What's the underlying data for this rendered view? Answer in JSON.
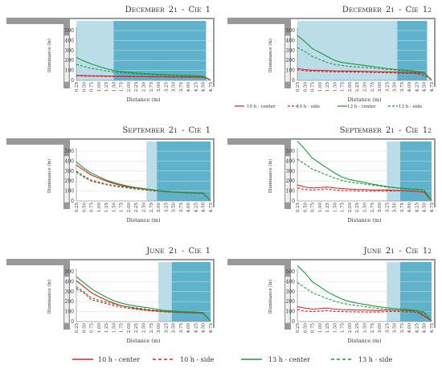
{
  "x_tick_labels": [
    "0.25",
    "0.50",
    "0.75",
    "1.00",
    "1.25",
    "1.50",
    "1.75",
    "2.00",
    "2.25",
    "2.50",
    "2.75",
    "3.00",
    "3.25",
    "3.50",
    "3.75",
    "4.00",
    "4.25",
    "4.50",
    "4.75"
  ],
  "y_ticks": [
    0,
    100,
    200,
    300,
    400,
    500
  ],
  "ylim": [
    0,
    500
  ],
  "ylabel": "Illuminance (lx)",
  "xlabel": "Distance (m)",
  "colors": {
    "red": "#e02020",
    "green": "#1f9a3a",
    "shade_light": "#b9dde9",
    "shade_dark": "#5fb2cb",
    "wall": "#999999"
  },
  "legend_small": [
    {
      "label": "10 h - center",
      "color": "#e02020",
      "dash": false
    },
    {
      "label": "10 h - side",
      "color": "#e02020",
      "dash": true
    },
    {
      "label": "13 h - center",
      "color": "#1f9a3a",
      "dash": false
    },
    {
      "label": "13 h - side",
      "color": "#1f9a3a",
      "dash": true
    }
  ],
  "legend_big": [
    {
      "label": "10 h - center",
      "color": "#e02020",
      "dash": false
    },
    {
      "label": "10 h - side",
      "color": "#e02020",
      "dash": true
    },
    {
      "label": "13 h - center",
      "color": "#1f9a3a",
      "dash": false
    },
    {
      "label": "13 h - side",
      "color": "#1f9a3a",
      "dash": true
    }
  ],
  "chart_data": [
    {
      "type": "line",
      "title": "December 21 - CIE 1",
      "shade_light_x": [
        0.25,
        1.5
      ],
      "shade_dark_x": [
        1.5,
        4.6
      ],
      "series": [
        {
          "name": "10 h - center",
          "values": [
            50,
            48,
            46,
            45,
            44,
            43,
            42,
            41,
            40,
            39,
            39,
            38,
            37,
            36,
            35,
            35,
            34,
            33,
            5
          ]
        },
        {
          "name": "10 h - side",
          "values": [
            45,
            43,
            42,
            41,
            40,
            39,
            38,
            37,
            37,
            36,
            35,
            35,
            34,
            33,
            32,
            32,
            31,
            30,
            5
          ]
        },
        {
          "name": "13 h - center",
          "values": [
            230,
            195,
            165,
            140,
            118,
            100,
            88,
            80,
            74,
            69,
            64,
            60,
            57,
            54,
            51,
            49,
            46,
            42,
            5
          ]
        },
        {
          "name": "13 h - side",
          "values": [
            160,
            140,
            120,
            108,
            95,
            85,
            78,
            72,
            66,
            62,
            58,
            55,
            52,
            49,
            47,
            45,
            43,
            40,
            5
          ]
        }
      ]
    },
    {
      "type": "line",
      "title": "December 21 - CIE 12",
      "shade_light_x": [
        0.25,
        3.6
      ],
      "shade_dark_x": [
        3.6,
        4.6
      ],
      "series": [
        {
          "name": "10 h - center",
          "values": [
            120,
            108,
            102,
            100,
            98,
            95,
            94,
            93,
            92,
            90,
            88,
            86,
            85,
            83,
            80,
            78,
            75,
            72,
            5
          ]
        },
        {
          "name": "10 h - side",
          "values": [
            105,
            98,
            92,
            90,
            88,
            86,
            85,
            84,
            83,
            82,
            80,
            78,
            76,
            74,
            72,
            70,
            68,
            50,
            5
          ]
        },
        {
          "name": "13 h - center",
          "values": [
            450,
            390,
            320,
            280,
            240,
            200,
            180,
            170,
            160,
            150,
            140,
            130,
            120,
            112,
            105,
            98,
            92,
            80,
            5
          ]
        },
        {
          "name": "13 h - side",
          "values": [
            330,
            290,
            240,
            210,
            180,
            160,
            150,
            140,
            135,
            130,
            125,
            118,
            110,
            105,
            98,
            92,
            85,
            75,
            5
          ]
        }
      ]
    },
    {
      "type": "line",
      "title": "September 21 - CIE 1",
      "shade_light_x": [
        2.6,
        2.95
      ],
      "shade_dark_x": [
        2.95,
        4.75
      ],
      "series": [
        {
          "name": "10 h - center",
          "values": [
            360,
            310,
            260,
            230,
            200,
            175,
            155,
            140,
            130,
            120,
            110,
            102,
            95,
            90,
            85,
            82,
            80,
            78,
            5
          ]
        },
        {
          "name": "10 h - side",
          "values": [
            290,
            240,
            200,
            180,
            165,
            150,
            140,
            130,
            120,
            112,
            105,
            98,
            92,
            88,
            84,
            80,
            78,
            75,
            5
          ]
        },
        {
          "name": "13 h - center",
          "values": [
            390,
            330,
            280,
            245,
            210,
            185,
            165,
            148,
            135,
            125,
            115,
            105,
            98,
            92,
            88,
            85,
            82,
            80,
            5
          ]
        },
        {
          "name": "13 h - side",
          "values": [
            300,
            250,
            210,
            190,
            170,
            155,
            145,
            135,
            125,
            118,
            110,
            102,
            96,
            90,
            86,
            83,
            80,
            78,
            5
          ]
        }
      ]
    },
    {
      "type": "line",
      "title": "September 21 - CIE 12",
      "shade_light_x": [
        3.25,
        3.7
      ],
      "shade_dark_x": [
        3.7,
        4.75
      ],
      "series": [
        {
          "name": "10 h - center",
          "values": [
            160,
            140,
            130,
            135,
            140,
            130,
            125,
            120,
            115,
            115,
            110,
            110,
            110,
            105,
            105,
            100,
            95,
            90,
            5
          ]
        },
        {
          "name": "10 h - side",
          "values": [
            130,
            115,
            110,
            115,
            120,
            110,
            105,
            105,
            100,
            100,
            98,
            98,
            100,
            100,
            102,
            100,
            95,
            90,
            5
          ]
        },
        {
          "name": "13 h - center",
          "values": [
            600,
            520,
            430,
            380,
            330,
            280,
            240,
            215,
            200,
            185,
            170,
            158,
            145,
            135,
            128,
            122,
            118,
            110,
            5
          ]
        },
        {
          "name": "13 h - side",
          "values": [
            420,
            370,
            320,
            290,
            260,
            230,
            205,
            190,
            180,
            170,
            160,
            150,
            140,
            132,
            125,
            118,
            112,
            105,
            5
          ]
        }
      ]
    },
    {
      "type": "line",
      "title": "June 21 - CIE 1",
      "shade_light_x": [
        3.0,
        3.45
      ],
      "shade_dark_x": [
        3.45,
        4.75
      ],
      "series": [
        {
          "name": "10 h - center",
          "values": [
            410,
            350,
            290,
            250,
            215,
            185,
            160,
            145,
            130,
            120,
            112,
            105,
            100,
            96,
            93,
            90,
            88,
            85,
            5
          ]
        },
        {
          "name": "10 h - side",
          "values": [
            330,
            290,
            220,
            200,
            180,
            160,
            145,
            133,
            124,
            115,
            108,
            102,
            97,
            93,
            90,
            88,
            85,
            83,
            5
          ]
        },
        {
          "name": "13 h - center",
          "values": [
            450,
            390,
            330,
            285,
            245,
            210,
            185,
            168,
            155,
            145,
            135,
            120,
            110,
            105,
            100,
            98,
            95,
            90,
            5
          ]
        },
        {
          "name": "13 h - side",
          "values": [
            350,
            300,
            240,
            215,
            195,
            175,
            160,
            148,
            138,
            128,
            120,
            110,
            102,
            97,
            94,
            92,
            90,
            88,
            5
          ]
        }
      ]
    },
    {
      "type": "line",
      "title": "June 21 - CIE 12",
      "shade_light_x": [
        3.25,
        3.7
      ],
      "shade_dark_x": [
        3.7,
        4.75
      ],
      "series": [
        {
          "name": "10 h - center",
          "values": [
            150,
            135,
            125,
            130,
            135,
            125,
            120,
            118,
            115,
            115,
            112,
            110,
            115,
            115,
            112,
            110,
            105,
            60,
            5
          ]
        },
        {
          "name": "10 h - side",
          "values": [
            120,
            105,
            100,
            105,
            110,
            102,
            100,
            98,
            96,
            96,
            95,
            95,
            100,
            102,
            100,
            98,
            92,
            55,
            5
          ]
        },
        {
          "name": "13 h - center",
          "values": [
            560,
            490,
            400,
            350,
            300,
            260,
            225,
            200,
            185,
            172,
            160,
            148,
            138,
            130,
            125,
            120,
            110,
            95,
            5
          ]
        },
        {
          "name": "13 h - side",
          "values": [
            390,
            340,
            290,
            260,
            230,
            205,
            185,
            170,
            160,
            150,
            140,
            130,
            122,
            115,
            110,
            105,
            98,
            85,
            5
          ]
        }
      ]
    }
  ]
}
